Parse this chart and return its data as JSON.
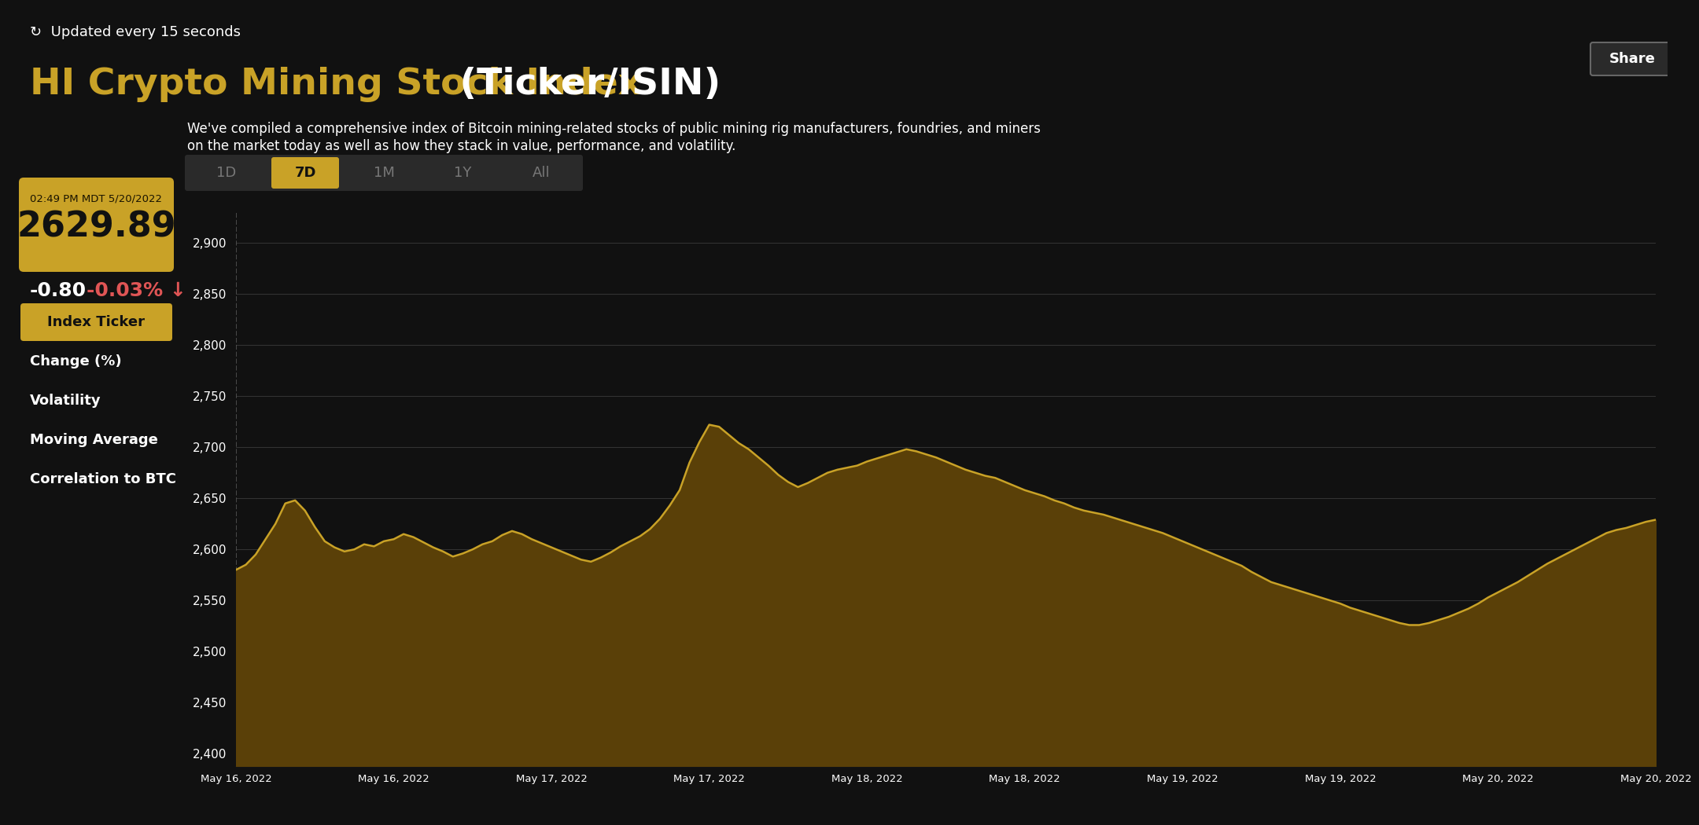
{
  "bg_color": "#111111",
  "gold_color": "#c9a227",
  "gold_fill_top": "#7a6010",
  "gold_fill_bot": "#2a200a",
  "white_color": "#ffffff",
  "gray_color": "#777777",
  "red_color": "#e05555",
  "update_text": "Updated every 15 seconds",
  "title_gold": "HI Crypto Mining Stock Index",
  "title_white": " (Ticker/ISIN)",
  "timestamp": "02:49 PM MDT 5/20/2022",
  "current_value": "2629.89",
  "change_abs": "-0.80",
  "change_pct": "-0.03%",
  "description_line1": "We've compiled a comprehensive index of Bitcoin mining-related stocks of public mining rig manufacturers, foundries, and miners",
  "description_line2": "on the market today as well as how they stack in value, performance, and volatility.",
  "tab_labels": [
    "1D",
    "7D",
    "1M",
    "1Y",
    "All"
  ],
  "active_tab": "7D",
  "left_panel_items": [
    "Index Ticker",
    "Change (%)",
    "Volatility",
    "Moving Average",
    "Correlation to BTC"
  ],
  "active_panel_item": "Index Ticker",
  "x_labels": [
    "May 16, 2022",
    "May 16, 2022",
    "May 17, 2022",
    "May 17, 2022",
    "May 18, 2022",
    "May 18, 2022",
    "May 19, 2022",
    "May 19, 2022",
    "May 20, 2022",
    "May 20, 2022"
  ],
  "y_ticks": [
    2400,
    2450,
    2500,
    2550,
    2600,
    2650,
    2700,
    2750,
    2800,
    2850,
    2900
  ],
  "ylim": [
    2388,
    2930
  ],
  "share_button": "Share",
  "chart_data": [
    2580,
    2585,
    2595,
    2610,
    2625,
    2645,
    2648,
    2638,
    2622,
    2608,
    2602,
    2598,
    2600,
    2605,
    2603,
    2608,
    2610,
    2615,
    2612,
    2607,
    2602,
    2598,
    2593,
    2596,
    2600,
    2605,
    2608,
    2614,
    2618,
    2615,
    2610,
    2606,
    2602,
    2598,
    2594,
    2590,
    2588,
    2592,
    2597,
    2603,
    2608,
    2613,
    2620,
    2630,
    2643,
    2658,
    2685,
    2705,
    2722,
    2720,
    2712,
    2704,
    2698,
    2690,
    2682,
    2673,
    2666,
    2661,
    2665,
    2670,
    2675,
    2678,
    2680,
    2682,
    2686,
    2689,
    2692,
    2695,
    2698,
    2696,
    2693,
    2690,
    2686,
    2682,
    2678,
    2675,
    2672,
    2670,
    2666,
    2662,
    2658,
    2655,
    2652,
    2648,
    2645,
    2641,
    2638,
    2636,
    2634,
    2631,
    2628,
    2625,
    2622,
    2619,
    2616,
    2612,
    2608,
    2604,
    2600,
    2596,
    2592,
    2588,
    2584,
    2578,
    2573,
    2568,
    2565,
    2562,
    2559,
    2556,
    2553,
    2550,
    2547,
    2543,
    2540,
    2537,
    2534,
    2531,
    2528,
    2526,
    2526,
    2528,
    2531,
    2534,
    2538,
    2542,
    2547,
    2553,
    2558,
    2563,
    2568,
    2574,
    2580,
    2586,
    2591,
    2596,
    2601,
    2606,
    2611,
    2616,
    2619,
    2621,
    2624,
    2627,
    2629
  ]
}
